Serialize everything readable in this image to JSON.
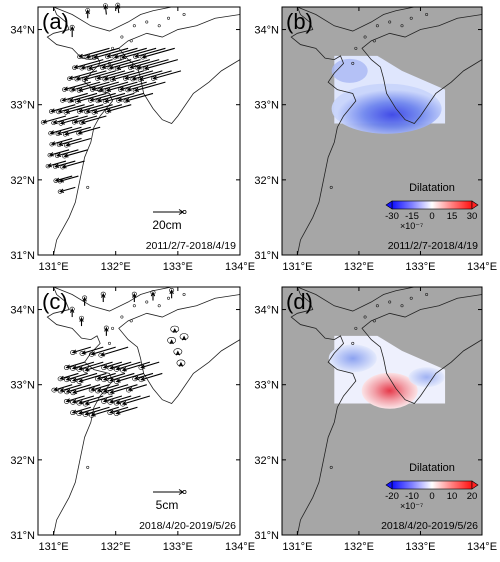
{
  "panels": [
    {
      "letter": "(a)",
      "type": "vector",
      "scale_label": "20cm",
      "period": "2011/2/7-2018/4/19"
    },
    {
      "letter": "(b)",
      "type": "dilatation",
      "colorbar_title": "Dilatation",
      "colorbar_ticks": [
        "-30",
        "-15",
        "0",
        "15",
        "30"
      ],
      "colorbar_exponent": "×10⁻⁷",
      "period": "2011/2/7-2018/4/19"
    },
    {
      "letter": "(c)",
      "type": "vector",
      "scale_label": "5cm",
      "period": "2018/4/20-2019/5/26"
    },
    {
      "letter": "(d)",
      "type": "dilatation",
      "colorbar_title": "Dilatation",
      "colorbar_ticks": [
        "-20",
        "-10",
        "0",
        "10",
        "20"
      ],
      "colorbar_exponent": "×10⁻⁷",
      "period": "2018/4/20-2019/5/26"
    }
  ],
  "axes": {
    "lon_ticks": [
      "131°E",
      "132°E",
      "133°E",
      "134°E"
    ],
    "lat_ticks": [
      "34°N",
      "33°N",
      "32°N",
      "31°N"
    ]
  },
  "colors": {
    "land_gray": "#a6a6a6",
    "coast": "#222222",
    "cbar_blue": "#1010ff",
    "cbar_red": "#ff2020"
  }
}
